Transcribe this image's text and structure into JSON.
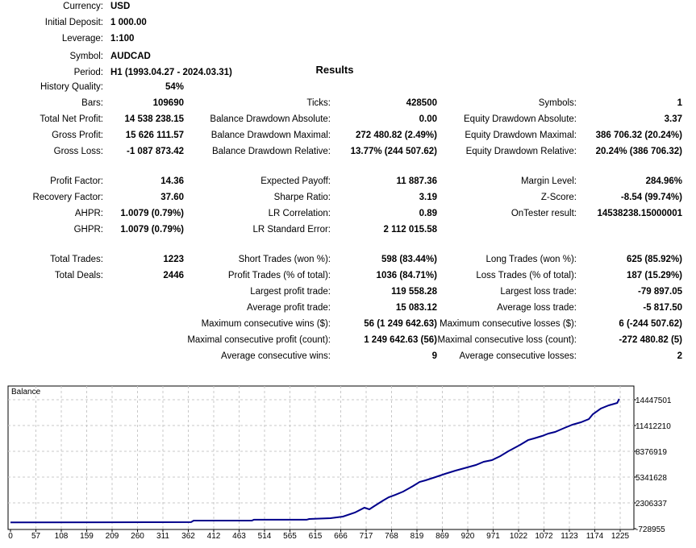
{
  "header": [
    {
      "label": "Currency:",
      "value": "USD"
    },
    {
      "label": "Initial Deposit:",
      "value": "1 000.00"
    },
    {
      "label": "Leverage:",
      "value": "1:100"
    },
    {
      "label": "Symbol:",
      "value": "AUDCAD"
    },
    {
      "label": "Period:",
      "value": "H1 (1993.04.27 - 2024.03.31)"
    }
  ],
  "results_title": "Results",
  "rows": [
    [
      [
        "History Quality:",
        "54%"
      ]
    ],
    [
      [
        "Bars:",
        "109690"
      ],
      [
        "Ticks:",
        "428500"
      ],
      [
        "Symbols:",
        "1"
      ]
    ],
    [
      [
        "Total Net Profit:",
        "14 538 238.15"
      ],
      [
        "Balance Drawdown Absolute:",
        "0.00"
      ],
      [
        "Equity Drawdown Absolute:",
        "3.37"
      ]
    ],
    [
      [
        "Gross Profit:",
        "15 626 111.57"
      ],
      [
        "Balance Drawdown Maximal:",
        "272 480.82 (2.49%)"
      ],
      [
        "Equity Drawdown Maximal:",
        "386 706.32 (20.24%)"
      ]
    ],
    [
      [
        "Gross Loss:",
        "-1 087 873.42"
      ],
      [
        "Balance Drawdown Relative:",
        "13.77% (244 507.62)"
      ],
      [
        "Equity Drawdown Relative:",
        "20.24% (386 706.32)"
      ]
    ],
    [
      [
        "Profit Factor:",
        "14.36"
      ],
      [
        "Expected Payoff:",
        "11 887.36"
      ],
      [
        "Margin Level:",
        "284.96%"
      ]
    ],
    [
      [
        "Recovery Factor:",
        "37.60"
      ],
      [
        "Sharpe Ratio:",
        "3.19"
      ],
      [
        "Z-Score:",
        "-8.54 (99.74%)"
      ]
    ],
    [
      [
        "AHPR:",
        "1.0079 (0.79%)"
      ],
      [
        "LR Correlation:",
        "0.89"
      ],
      [
        "OnTester result:",
        "14538238.15000001"
      ]
    ],
    [
      [
        "GHPR:",
        "1.0079 (0.79%)"
      ],
      [
        "LR Standard Error:",
        "2 112 015.58"
      ]
    ],
    [
      [
        "Total Trades:",
        "1223"
      ],
      [
        "Short Trades (won %):",
        "598 (83.44%)"
      ],
      [
        "Long Trades (won %):",
        "625 (85.92%)"
      ]
    ],
    [
      [
        "Total Deals:",
        "2446"
      ],
      [
        "Profit Trades (% of total):",
        "1036 (84.71%)"
      ],
      [
        "Loss Trades (% of total):",
        "187 (15.29%)"
      ]
    ],
    [
      null,
      [
        "Largest profit trade:",
        "119 558.28"
      ],
      [
        "Largest loss trade:",
        "-79 897.05"
      ]
    ],
    [
      null,
      [
        "Average profit trade:",
        "15 083.12"
      ],
      [
        "Average loss trade:",
        "-5 817.50"
      ]
    ],
    [
      null,
      [
        "Maximum consecutive wins ($):",
        "56 (1 249 642.63)"
      ],
      [
        "Maximum consecutive losses ($):",
        "6 (-244 507.62)"
      ]
    ],
    [
      null,
      [
        "Maximal consecutive profit (count):",
        "1 249 642.63 (56)"
      ],
      [
        "Maximal consecutive loss (count):",
        "-272 480.82 (5)"
      ]
    ],
    [
      null,
      [
        "Average consecutive wins:",
        "9"
      ],
      [
        "Average consecutive losses:",
        "2"
      ]
    ]
  ],
  "chart_data": {
    "type": "line",
    "title": "Balance",
    "line_color": "#00008b",
    "grid": true,
    "x_ticks": [
      "0",
      "57",
      "108",
      "159",
      "209",
      "260",
      "311",
      "362",
      "412",
      "463",
      "514",
      "565",
      "615",
      "666",
      "717",
      "768",
      "819",
      "869",
      "920",
      "971",
      "1022",
      "1072",
      "1123",
      "1174",
      "1225"
    ],
    "y_ticks": [
      "14447501",
      "11412210",
      "8376919",
      "5341628",
      "2306337",
      "-728955"
    ],
    "ylim": [
      -728955,
      14447501
    ],
    "xlim": [
      0,
      1225
    ],
    "series": [
      {
        "points": [
          [
            0,
            1000
          ],
          [
            363,
            40000
          ],
          [
            368,
            220000
          ],
          [
            485,
            220000
          ],
          [
            489,
            320000
          ],
          [
            595,
            320000
          ],
          [
            600,
            410000
          ],
          [
            643,
            500000
          ],
          [
            668,
            690000
          ],
          [
            692,
            1170000
          ],
          [
            711,
            1740000
          ],
          [
            721,
            1550000
          ],
          [
            731,
            1930000
          ],
          [
            749,
            2590000
          ],
          [
            760,
            2970000
          ],
          [
            773,
            3250000
          ],
          [
            789,
            3630000
          ],
          [
            809,
            4300000
          ],
          [
            822,
            4770000
          ],
          [
            834,
            4960000
          ],
          [
            854,
            5340000
          ],
          [
            873,
            5720000
          ],
          [
            894,
            6100000
          ],
          [
            911,
            6380000
          ],
          [
            935,
            6760000
          ],
          [
            951,
            7140000
          ],
          [
            967,
            7330000
          ],
          [
            984,
            7810000
          ],
          [
            1000,
            8380000
          ],
          [
            1024,
            9140000
          ],
          [
            1040,
            9700000
          ],
          [
            1052,
            9890000
          ],
          [
            1068,
            10180000
          ],
          [
            1081,
            10460000
          ],
          [
            1094,
            10650000
          ],
          [
            1113,
            11130000
          ],
          [
            1129,
            11510000
          ],
          [
            1146,
            11790000
          ],
          [
            1162,
            12170000
          ],
          [
            1170,
            12740000
          ],
          [
            1186,
            13400000
          ],
          [
            1202,
            13780000
          ],
          [
            1219,
            14070000
          ],
          [
            1223,
            14539238
          ]
        ]
      }
    ]
  }
}
